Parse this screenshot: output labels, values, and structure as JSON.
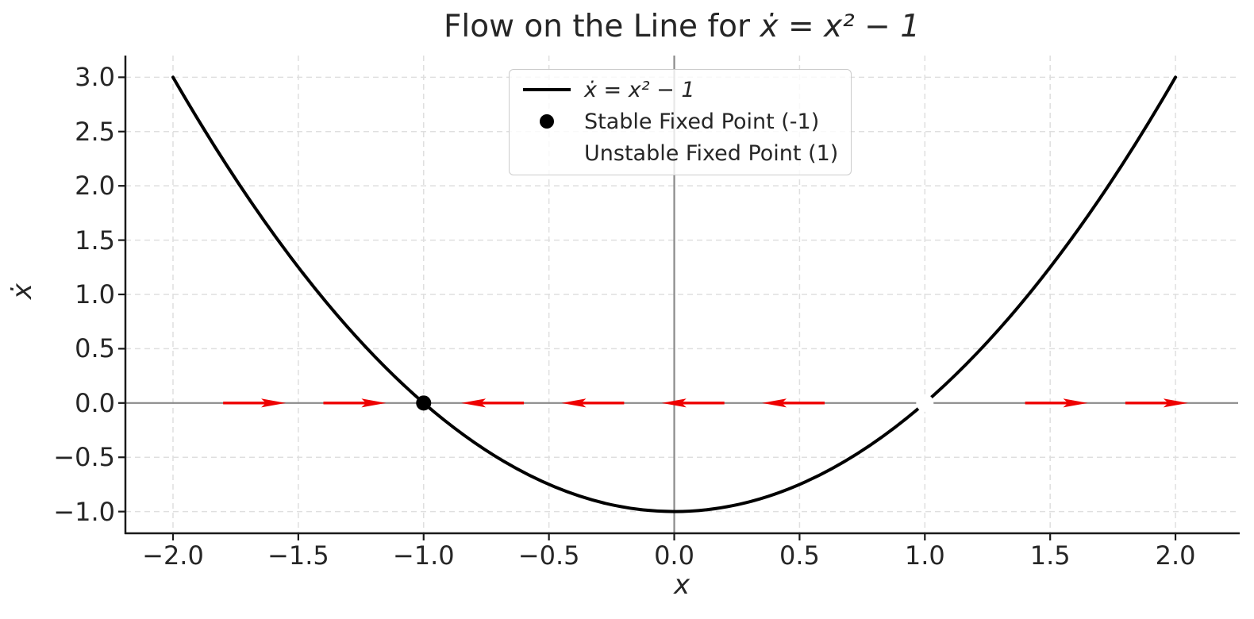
{
  "figure": {
    "title_prefix": "Flow on the Line for ",
    "title_math": "ẋ = x² − 1",
    "xlabel": "x",
    "ylabel": "ẋ"
  },
  "chart_data": {
    "type": "line",
    "title": "Flow on the Line for ẋ = x² − 1",
    "xlabel": "x",
    "ylabel": "ẋ",
    "xlim": [
      -2.19,
      2.25
    ],
    "ylim": [
      -1.2,
      3.2
    ],
    "grid": {
      "on": true,
      "style": "dashed",
      "color": "#dfdfdf"
    },
    "axline_color": "#8a8a8a",
    "xticks": {
      "values": [
        -2.0,
        -1.5,
        -1.0,
        -0.5,
        0.0,
        0.5,
        1.0,
        1.5,
        2.0
      ],
      "labels": [
        "−2.0",
        "−1.5",
        "−1.0",
        "−0.5",
        "0.0",
        "0.5",
        "1.0",
        "1.5",
        "2.0"
      ]
    },
    "yticks": {
      "values": [
        -1.0,
        -0.5,
        0.0,
        0.5,
        1.0,
        1.5,
        2.0,
        2.5,
        3.0
      ],
      "labels": [
        "−1.0",
        "−0.5",
        "0.0",
        "0.5",
        "1.0",
        "1.5",
        "2.0",
        "2.5",
        "3.0"
      ]
    },
    "curve": {
      "name": "ẋ = x² − 1",
      "equation": "xdot = x^2 - 1",
      "color": "#000000",
      "linewidth": 4,
      "points": [
        [
          -2.0,
          3.0
        ],
        [
          -1.75,
          2.0625
        ],
        [
          -1.5,
          1.25
        ],
        [
          -1.25,
          0.5625
        ],
        [
          -1.0,
          0.0
        ],
        [
          -0.75,
          -0.4375
        ],
        [
          -0.5,
          -0.75
        ],
        [
          -0.25,
          -0.9375
        ],
        [
          0.0,
          -1.0
        ],
        [
          0.25,
          -0.9375
        ],
        [
          0.5,
          -0.75
        ],
        [
          0.75,
          -0.4375
        ],
        [
          1.0,
          0.0
        ],
        [
          1.25,
          0.5625
        ],
        [
          1.5,
          1.25
        ],
        [
          1.75,
          2.0625
        ],
        [
          2.0,
          3.0
        ]
      ]
    },
    "fixed_points": [
      {
        "x": -1,
        "y": 0,
        "stability": "stable",
        "marker": "black-filled-circle",
        "label": "Stable Fixed Point (-1)"
      },
      {
        "x": 1,
        "y": 0,
        "stability": "unstable",
        "marker": "white-circle",
        "label": "Unstable Fixed Point (1)"
      }
    ],
    "flow_arrows": {
      "color": "#ee0000",
      "y": 0,
      "dx": 0.25,
      "positions": [
        {
          "x": -1.8,
          "direction": "right"
        },
        {
          "x": -1.4,
          "direction": "right"
        },
        {
          "x": -0.6,
          "direction": "left"
        },
        {
          "x": -0.2,
          "direction": "left"
        },
        {
          "x": 0.2,
          "direction": "left"
        },
        {
          "x": 0.6,
          "direction": "left"
        },
        {
          "x": 1.4,
          "direction": "right"
        },
        {
          "x": 1.8,
          "direction": "right"
        }
      ]
    },
    "legend": {
      "position": "upper center",
      "entries": [
        {
          "label": "ẋ = x² − 1",
          "marker": "line",
          "color": "#000000"
        },
        {
          "label": "Stable Fixed Point (-1)",
          "marker": "filled-circle",
          "color": "#000000"
        },
        {
          "label": "Unstable Fixed Point (1)",
          "marker": "none",
          "color": "#ffffff"
        }
      ]
    }
  }
}
